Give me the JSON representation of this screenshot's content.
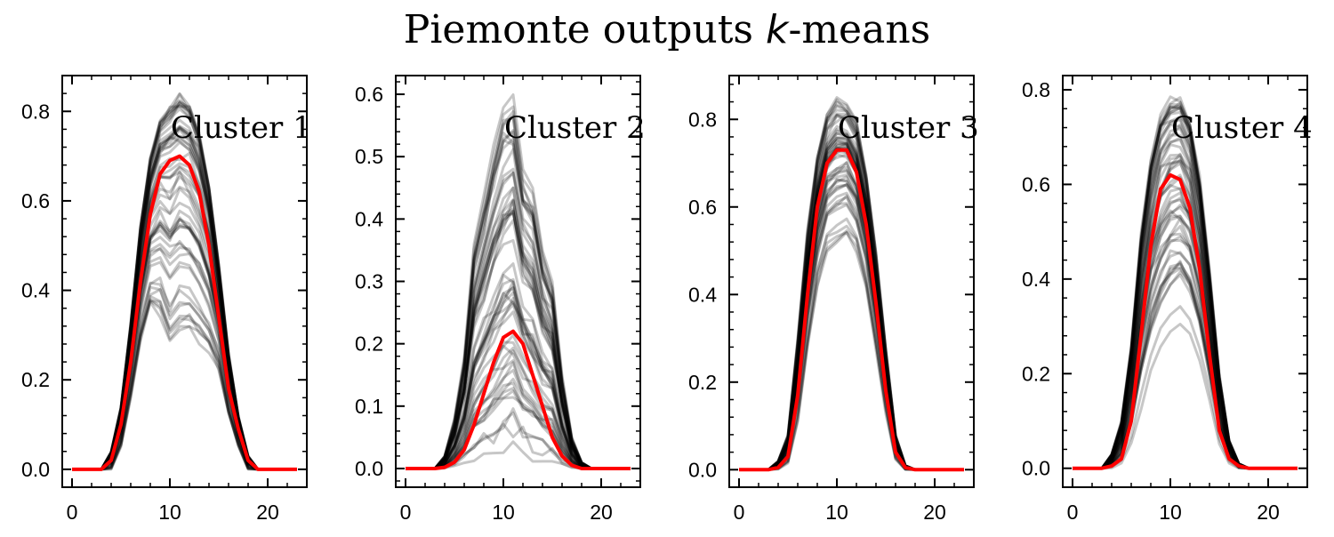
{
  "title": {
    "prefix": "Piemonte outputs ",
    "math": "k",
    "suffix": "-means"
  },
  "colors": {
    "individual_series": "#000000",
    "mean_series": "#ff0000",
    "axes": "#000000"
  },
  "chart_data": [
    {
      "type": "line",
      "label": "Cluster 1",
      "x": [
        0,
        1,
        2,
        3,
        4,
        5,
        6,
        7,
        8,
        9,
        10,
        11,
        12,
        13,
        14,
        15,
        16,
        17,
        18,
        19,
        20,
        21,
        22,
        23
      ],
      "xlim": [
        -1,
        24
      ],
      "xticks": [
        0,
        10,
        20
      ],
      "ylim": [
        -0.04,
        0.88
      ],
      "yticks": [
        0.0,
        0.2,
        0.4,
        0.6,
        0.8
      ],
      "ytick_labels": [
        "0.0",
        "0.2",
        "0.4",
        "0.6",
        "0.8"
      ],
      "mean": [
        0,
        0,
        0,
        0,
        0.02,
        0.1,
        0.24,
        0.42,
        0.57,
        0.66,
        0.69,
        0.7,
        0.68,
        0.62,
        0.5,
        0.34,
        0.18,
        0.09,
        0.02,
        0,
        0,
        0,
        0,
        0
      ],
      "envelope_low": [
        0,
        0,
        0,
        0,
        0,
        0.05,
        0.16,
        0.28,
        0.36,
        0.34,
        0.27,
        0.3,
        0.3,
        0.28,
        0.26,
        0.22,
        0.12,
        0.05,
        0,
        0,
        0,
        0,
        0,
        0
      ],
      "envelope_high": [
        0,
        0,
        0,
        0,
        0.04,
        0.14,
        0.33,
        0.55,
        0.7,
        0.79,
        0.82,
        0.84,
        0.82,
        0.76,
        0.64,
        0.46,
        0.26,
        0.12,
        0.03,
        0,
        0,
        0,
        0,
        0
      ],
      "mean_color": "red",
      "series_color": "black (semi-transparent)",
      "data_start": 0,
      "data_end": 23
    },
    {
      "type": "line",
      "label": "Cluster 2",
      "x": [
        0,
        1,
        2,
        3,
        4,
        5,
        6,
        7,
        8,
        9,
        10,
        11,
        12,
        13,
        14,
        15,
        16,
        17,
        18,
        19,
        20,
        21,
        22,
        23
      ],
      "xlim": [
        -1,
        24
      ],
      "xticks": [
        0,
        10,
        20
      ],
      "ylim": [
        -0.03,
        0.63
      ],
      "yticks": [
        0.0,
        0.1,
        0.2,
        0.3,
        0.4,
        0.5,
        0.6
      ],
      "ytick_labels": [
        "0.0",
        "0.1",
        "0.2",
        "0.3",
        "0.4",
        "0.5",
        "0.6"
      ],
      "mean": [
        0,
        0,
        0,
        0,
        0.002,
        0.01,
        0.03,
        0.07,
        0.12,
        0.17,
        0.21,
        0.22,
        0.2,
        0.15,
        0.1,
        0.05,
        0.02,
        0.005,
        0,
        0,
        0,
        0,
        0,
        0
      ],
      "envelope_low": [
        0,
        0,
        0,
        0,
        0,
        0,
        0,
        0,
        0,
        0,
        0.01,
        0.02,
        0.01,
        0,
        0,
        0,
        0,
        0,
        0,
        0,
        0,
        0,
        0,
        0
      ],
      "envelope_high": [
        0,
        0,
        0,
        0,
        0.02,
        0.08,
        0.18,
        0.36,
        0.44,
        0.52,
        0.58,
        0.6,
        0.48,
        0.45,
        0.35,
        0.3,
        0.15,
        0.05,
        0.01,
        0,
        0,
        0,
        0,
        0
      ],
      "mean_color": "red",
      "series_color": "black (semi-transparent)",
      "data_start": 0,
      "data_end": 23
    },
    {
      "type": "line",
      "label": "Cluster 3",
      "x": [
        0,
        1,
        2,
        3,
        4,
        5,
        6,
        7,
        8,
        9,
        10,
        11,
        12,
        13,
        14,
        15,
        16,
        17,
        18,
        19,
        20,
        21,
        22,
        23
      ],
      "xlim": [
        -1,
        24
      ],
      "xticks": [
        0,
        10,
        20
      ],
      "ylim": [
        -0.04,
        0.9
      ],
      "yticks": [
        0.0,
        0.2,
        0.4,
        0.6,
        0.8
      ],
      "ytick_labels": [
        "0.0",
        "0.2",
        "0.4",
        "0.6",
        "0.8"
      ],
      "mean": [
        0,
        0,
        0,
        0,
        0.005,
        0.03,
        0.17,
        0.4,
        0.6,
        0.7,
        0.73,
        0.73,
        0.68,
        0.56,
        0.38,
        0.18,
        0.04,
        0.005,
        0,
        0,
        0,
        0,
        0,
        0
      ],
      "envelope_low": [
        0,
        0,
        0,
        0,
        0,
        0.01,
        0.1,
        0.26,
        0.4,
        0.48,
        0.5,
        0.52,
        0.48,
        0.4,
        0.26,
        0.12,
        0.02,
        0,
        0,
        0,
        0,
        0,
        0,
        0
      ],
      "envelope_high": [
        0,
        0,
        0,
        0,
        0.02,
        0.08,
        0.3,
        0.55,
        0.72,
        0.82,
        0.85,
        0.84,
        0.8,
        0.68,
        0.5,
        0.28,
        0.08,
        0.01,
        0,
        0,
        0,
        0,
        0,
        0
      ],
      "mean_color": "red",
      "series_color": "black (semi-transparent)",
      "data_start": 0,
      "data_end": 23
    },
    {
      "type": "line",
      "label": "Cluster 4",
      "x": [
        0,
        1,
        2,
        3,
        4,
        5,
        6,
        7,
        8,
        9,
        10,
        11,
        12,
        13,
        14,
        15,
        16,
        17,
        18,
        19,
        20,
        21,
        22,
        23
      ],
      "xlim": [
        -1,
        24
      ],
      "xticks": [
        0,
        10,
        20
      ],
      "ylim": [
        -0.04,
        0.83
      ],
      "yticks": [
        0.0,
        0.2,
        0.4,
        0.6,
        0.8
      ],
      "ytick_labels": [
        "0.0",
        "0.2",
        "0.4",
        "0.6",
        "0.8"
      ],
      "mean": [
        0,
        0,
        0,
        0,
        0.005,
        0.02,
        0.1,
        0.28,
        0.47,
        0.59,
        0.62,
        0.61,
        0.55,
        0.42,
        0.24,
        0.08,
        0.02,
        0.005,
        0,
        0,
        0,
        0,
        0,
        0
      ],
      "envelope_low": [
        0,
        0,
        0,
        0,
        0,
        0.01,
        0.05,
        0.12,
        0.2,
        0.25,
        0.28,
        0.3,
        0.28,
        0.22,
        0.14,
        0.05,
        0.01,
        0,
        0,
        0,
        0,
        0,
        0,
        0
      ],
      "envelope_high": [
        0,
        0,
        0,
        0,
        0.03,
        0.1,
        0.26,
        0.5,
        0.66,
        0.75,
        0.79,
        0.79,
        0.74,
        0.62,
        0.42,
        0.2,
        0.06,
        0.01,
        0,
        0,
        0,
        0,
        0,
        0
      ],
      "mean_color": "red",
      "series_color": "black (semi-transparent)",
      "data_start": 0,
      "data_end": 23
    }
  ]
}
